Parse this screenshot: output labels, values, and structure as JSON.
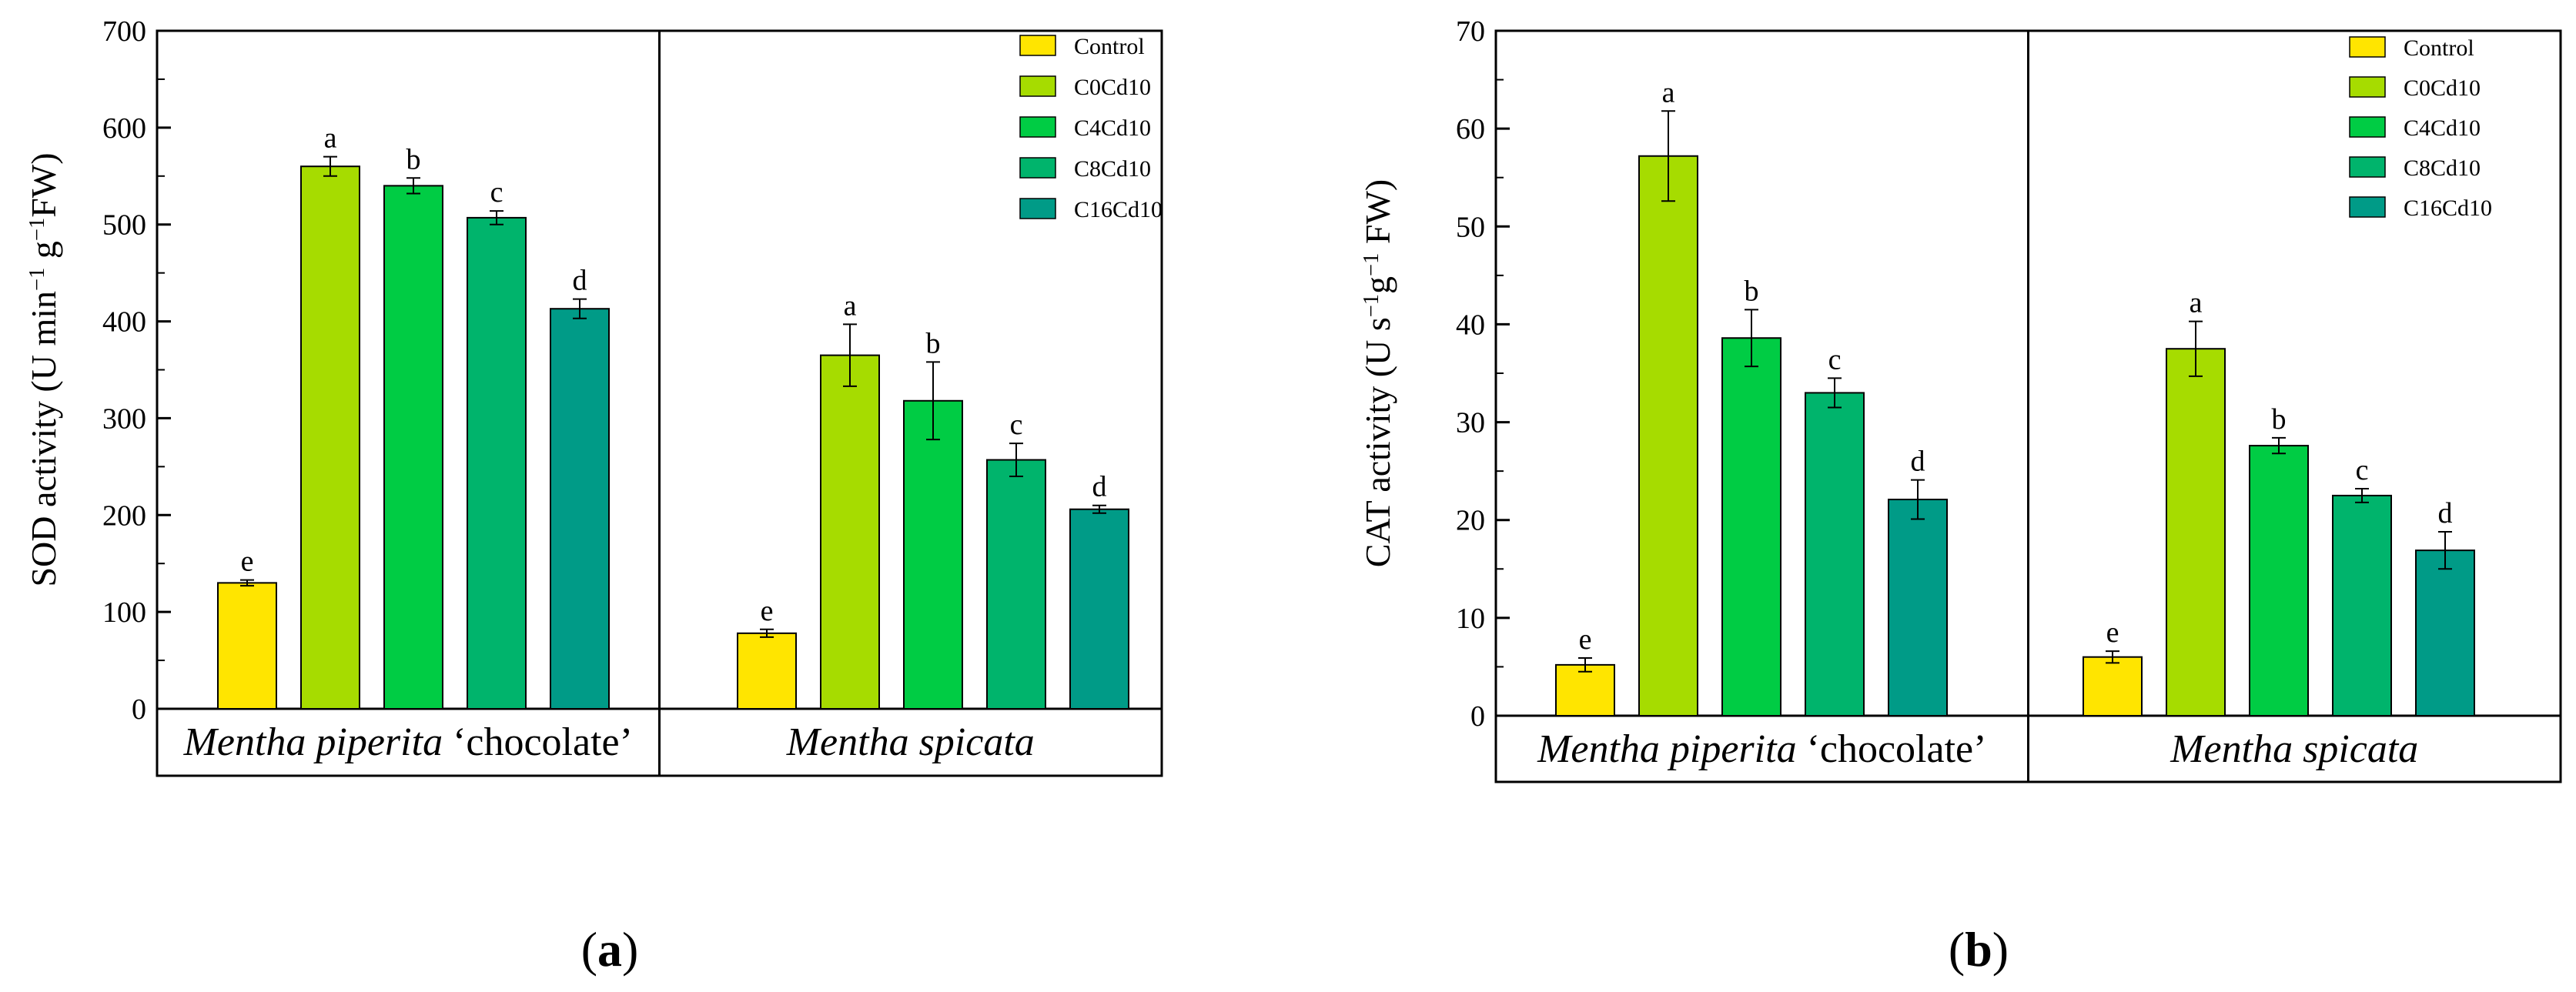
{
  "panels": [
    {
      "label_open": "(",
      "label_letter": "a",
      "label_close": ")"
    },
    {
      "label_open": "(",
      "label_letter": "b",
      "label_close": ")"
    }
  ],
  "chart_data": [
    {
      "type": "bar",
      "ylabel_main": "SOD activity (U min",
      "ylabel_sup1": "−1",
      "ylabel_mid": " g",
      "ylabel_sup2": "−1",
      "ylabel_end": "FW)",
      "ylim": [
        0,
        700
      ],
      "yticks": [
        0,
        100,
        200,
        300,
        400,
        500,
        600,
        700
      ],
      "groups": [
        {
          "name_italic": "Mentha piperita",
          "name_rest": " ‘chocolate’"
        },
        {
          "name_italic": "Mentha spicata",
          "name_rest": ""
        }
      ],
      "legend_position": "top-right",
      "series": [
        {
          "name": "Control",
          "color": "#FFE500",
          "values": [
            130,
            78
          ],
          "errors": [
            3,
            4
          ],
          "letters": [
            "e",
            "e"
          ]
        },
        {
          "name": "C0Cd10",
          "color": "#A6DC00",
          "values": [
            560,
            365
          ],
          "errors": [
            10,
            32
          ],
          "letters": [
            "a",
            "a"
          ]
        },
        {
          "name": "C4Cd10",
          "color": "#00CC44",
          "values": [
            540,
            318
          ],
          "errors": [
            8,
            40
          ],
          "letters": [
            "b",
            "b"
          ]
        },
        {
          "name": "C8Cd10",
          "color": "#00B46C",
          "values": [
            507,
            257
          ],
          "errors": [
            7,
            17
          ],
          "letters": [
            "c",
            "c"
          ]
        },
        {
          "name": "C16Cd10",
          "color": "#009B87",
          "values": [
            413,
            206
          ],
          "errors": [
            10,
            4
          ],
          "letters": [
            "d",
            "d"
          ]
        }
      ]
    },
    {
      "type": "bar",
      "ylabel_main": "CAT activity (U s",
      "ylabel_sup1": "−1",
      "ylabel_mid": "g",
      "ylabel_sup2": "−1",
      "ylabel_end": " FW)",
      "ylim": [
        0,
        70
      ],
      "yticks": [
        0,
        10,
        20,
        30,
        40,
        50,
        60,
        70
      ],
      "groups": [
        {
          "name_italic": "Mentha piperita",
          "name_rest": " ‘chocolate’"
        },
        {
          "name_italic": "Mentha spicata",
          "name_rest": ""
        }
      ],
      "legend_position": "top-right",
      "series": [
        {
          "name": "Control",
          "color": "#FFE500",
          "values": [
            5.2,
            6.0
          ],
          "errors": [
            0.7,
            0.6
          ],
          "letters": [
            "e",
            "e"
          ]
        },
        {
          "name": "C0Cd10",
          "color": "#A6DC00",
          "values": [
            57.2,
            37.5
          ],
          "errors": [
            4.6,
            2.8
          ],
          "letters": [
            "a",
            "a"
          ]
        },
        {
          "name": "C4Cd10",
          "color": "#00CC44",
          "values": [
            38.6,
            27.6
          ],
          "errors": [
            2.9,
            0.8
          ],
          "letters": [
            "b",
            "b"
          ]
        },
        {
          "name": "C8Cd10",
          "color": "#00B46C",
          "values": [
            33.0,
            22.5
          ],
          "errors": [
            1.5,
            0.7
          ],
          "letters": [
            "c",
            "c"
          ]
        },
        {
          "name": "C16Cd10",
          "color": "#009B87",
          "values": [
            22.1,
            16.9
          ],
          "errors": [
            2.0,
            1.9
          ],
          "letters": [
            "d",
            "d"
          ]
        }
      ]
    }
  ]
}
